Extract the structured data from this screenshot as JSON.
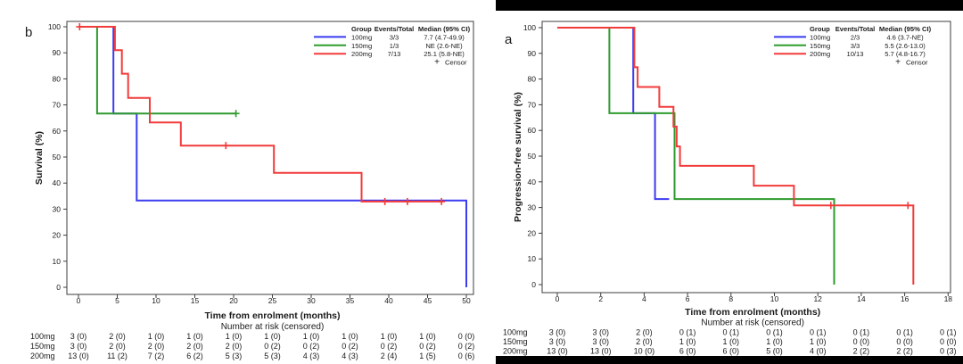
{
  "figure": {
    "background": "#ffffff",
    "top_bar": {
      "present": true
    },
    "bottom_bar": {
      "present": true
    }
  },
  "chart_data": [
    {
      "type": "line",
      "km_plot": true,
      "panel_label": "b",
      "ylabel": "Survival (%)",
      "xlabel": "Time from enrolment (months)",
      "risk_title": "Number at risk (censored)",
      "xlim": [
        0,
        50
      ],
      "ylim": [
        0,
        100
      ],
      "xticks": [
        0,
        5,
        10,
        15,
        20,
        25,
        30,
        35,
        40,
        45,
        50
      ],
      "yticks": [
        0,
        10,
        20,
        30,
        40,
        50,
        60,
        70,
        80,
        90,
        100
      ],
      "legend": {
        "headers": [
          "Group",
          "Events/Total",
          "Median (95% CI)"
        ],
        "rows": [
          {
            "group": "100mg",
            "events_total": "3/3",
            "median": "7.7 (4.7-49.9)"
          },
          {
            "group": "150mg",
            "events_total": "1/3",
            "median": "NE (2.6-NE)"
          },
          {
            "group": "200mg",
            "events_total": "7/13",
            "median": "25.1 (5.8-NE)"
          }
        ],
        "censor_label": "Censor"
      },
      "series": [
        {
          "name": "100mg",
          "color": "#3b3bf0",
          "points": [
            [
              0,
              100
            ],
            [
              4.5,
              100
            ],
            [
              4.5,
              66.7
            ],
            [
              7.5,
              66.7
            ],
            [
              7.5,
              33.3
            ],
            [
              50,
              33.3
            ],
            [
              50,
              0
            ]
          ],
          "censors": []
        },
        {
          "name": "150mg",
          "color": "#2e9b2e",
          "points": [
            [
              0,
              100
            ],
            [
              2.4,
              100
            ],
            [
              2.4,
              66.7
            ],
            [
              20.3,
              66.7
            ]
          ],
          "censors": [
            [
              20.3,
              66.7
            ]
          ]
        },
        {
          "name": "200mg",
          "color": "#f23b3b",
          "points": [
            [
              0,
              100
            ],
            [
              4.7,
              100
            ],
            [
              4.7,
              91
            ],
            [
              5.6,
              91
            ],
            [
              5.6,
              82
            ],
            [
              6.4,
              82
            ],
            [
              6.4,
              72.7
            ],
            [
              9.2,
              72.7
            ],
            [
              9.2,
              63.3
            ],
            [
              13.2,
              63.3
            ],
            [
              13.2,
              54.4
            ],
            [
              25.2,
              54.4
            ],
            [
              25.2,
              43.9
            ],
            [
              36.5,
              43.9
            ],
            [
              36.5,
              32.9
            ],
            [
              47,
              32.9
            ]
          ],
          "censors": [
            [
              0.15,
              100
            ],
            [
              19,
              54.4
            ],
            [
              39.5,
              32.9
            ],
            [
              42.4,
              32.9
            ],
            [
              46.8,
              32.9
            ]
          ]
        }
      ],
      "risk_table": [
        {
          "label": "100mg",
          "values": [
            "3 (0)",
            "2 (0)",
            "1 (0)",
            "1 (0)",
            "1 (0)",
            "1 (0)",
            "1 (0)",
            "1 (0)",
            "1 (0)",
            "1 (0)",
            "0 (0)"
          ]
        },
        {
          "label": "150mg",
          "values": [
            "3 (0)",
            "2 (0)",
            "2 (0)",
            "2 (0)",
            "2 (0)",
            "0 (2)",
            "0 (2)",
            "0 (2)",
            "0 (2)",
            "0 (2)",
            "0 (2)"
          ]
        },
        {
          "label": "200mg",
          "values": [
            "13 (0)",
            "11 (2)",
            "7 (2)",
            "6 (2)",
            "5 (3)",
            "5 (3)",
            "4 (3)",
            "4 (3)",
            "2 (4)",
            "1 (5)",
            "0 (6)"
          ]
        }
      ]
    },
    {
      "type": "line",
      "km_plot": true,
      "panel_label": "a",
      "ylabel": "Progression-free survival (%)",
      "xlabel": "Time from enrolment (months)",
      "risk_title": "Number at risk (censored)",
      "xlim": [
        0,
        18
      ],
      "ylim": [
        0,
        100
      ],
      "xticks": [
        0,
        2,
        4,
        6,
        8,
        10,
        12,
        14,
        16,
        18
      ],
      "yticks": [
        0,
        10,
        20,
        30,
        40,
        50,
        60,
        70,
        80,
        90,
        100
      ],
      "legend": {
        "headers": [
          "Group",
          "Events/Total",
          "Median (95% CI)"
        ],
        "rows": [
          {
            "group": "100mg",
            "events_total": "2/3",
            "median": "4.6 (3.7-NE)"
          },
          {
            "group": "150mg",
            "events_total": "3/3",
            "median": "5.5 (2.6-13.0)"
          },
          {
            "group": "200mg",
            "events_total": "10/13",
            "median": "5.7 (4.8-16.7)"
          }
        ],
        "censor_label": "Censor"
      },
      "series": [
        {
          "name": "100mg",
          "color": "#3b3bf0",
          "points": [
            [
              0,
              100
            ],
            [
              3.5,
              100
            ],
            [
              3.5,
              66.7
            ],
            [
              4.5,
              66.7
            ],
            [
              4.5,
              33.3
            ],
            [
              5.15,
              33.3
            ]
          ],
          "censors": []
        },
        {
          "name": "150mg",
          "color": "#2e9b2e",
          "points": [
            [
              0,
              100
            ],
            [
              2.4,
              100
            ],
            [
              2.4,
              66.7
            ],
            [
              5.4,
              66.7
            ],
            [
              5.4,
              33.3
            ],
            [
              12.75,
              33.3
            ],
            [
              12.75,
              0
            ]
          ],
          "censors": []
        },
        {
          "name": "200mg",
          "color": "#f23b3b",
          "points": [
            [
              0,
              100
            ],
            [
              3.55,
              100
            ],
            [
              3.55,
              84.6
            ],
            [
              3.7,
              84.6
            ],
            [
              3.7,
              76.9
            ],
            [
              4.7,
              76.9
            ],
            [
              4.7,
              69.2
            ],
            [
              5.35,
              69.2
            ],
            [
              5.35,
              61.5
            ],
            [
              5.5,
              61.5
            ],
            [
              5.5,
              53.8
            ],
            [
              5.65,
              53.8
            ],
            [
              5.65,
              46.2
            ],
            [
              9.05,
              46.2
            ],
            [
              9.05,
              38.5
            ],
            [
              10.9,
              38.5
            ],
            [
              10.9,
              30.8
            ],
            [
              16.4,
              30.8
            ],
            [
              16.4,
              0
            ]
          ],
          "censors": [
            [
              12.6,
              30.8
            ],
            [
              16.15,
              30.8
            ]
          ]
        }
      ],
      "risk_table": [
        {
          "label": "100mg",
          "values": [
            "3 (0)",
            "3 (0)",
            "2 (0)",
            "0 (1)",
            "0 (1)",
            "0 (1)",
            "0 (1)",
            "0 (1)",
            "0 (1)",
            "0 (1)"
          ]
        },
        {
          "label": "150mg",
          "values": [
            "3 (0)",
            "3 (0)",
            "2 (0)",
            "1 (0)",
            "1 (0)",
            "1 (0)",
            "1 (0)",
            "0 (0)",
            "0 (0)",
            "0 (0)"
          ]
        },
        {
          "label": "200mg",
          "values": [
            "13 (0)",
            "13 (0)",
            "10 (0)",
            "6 (0)",
            "6 (0)",
            "5 (0)",
            "4 (0)",
            "2 (2)",
            "2 (2)",
            "0 (3)"
          ]
        }
      ]
    }
  ]
}
